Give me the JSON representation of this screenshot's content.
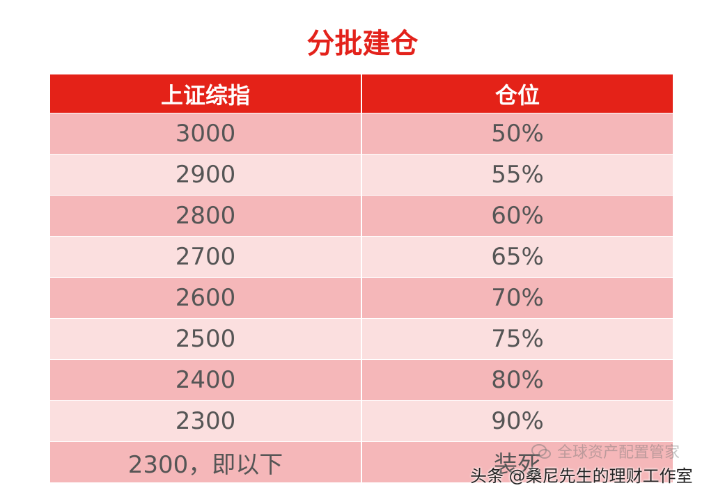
{
  "header": {
    "title": "分批建仓"
  },
  "table": {
    "columns": [
      "上证综指",
      "仓位"
    ],
    "rows": [
      [
        "3000",
        "50%"
      ],
      [
        "2900",
        "55%"
      ],
      [
        "2800",
        "60%"
      ],
      [
        "2700",
        "65%"
      ],
      [
        "2600",
        "70%"
      ],
      [
        "2500",
        "75%"
      ],
      [
        "2400",
        "80%"
      ],
      [
        "2300",
        "90%"
      ],
      [
        "2300，即以下",
        "装死"
      ]
    ]
  },
  "watermarks": {
    "wechat": "全球资产配置管家",
    "toutiao": "头条 @桑尼先生的理财工作室"
  }
}
